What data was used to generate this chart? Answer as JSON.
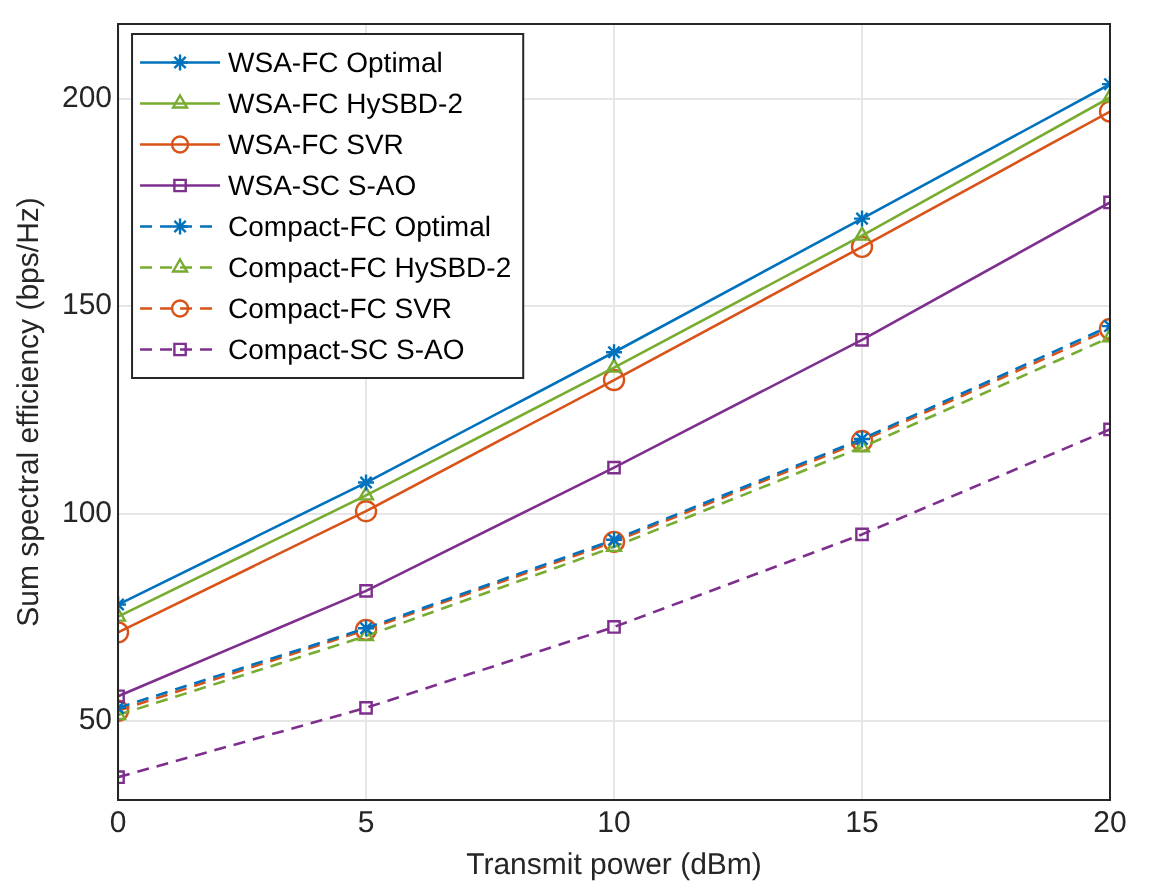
{
  "chart_data": {
    "type": "line",
    "xlabel": "Transmit power (dBm)",
    "ylabel": "Sum spectral efficiency (bps/Hz)",
    "x": [
      0,
      5,
      10,
      15,
      20
    ],
    "xlim": [
      0,
      20
    ],
    "xticks": [
      0,
      5,
      10,
      15,
      20
    ],
    "ylim": [
      31,
      218
    ],
    "yticks": [
      50,
      100,
      150,
      200
    ],
    "grid": true,
    "legend": "top left",
    "series": [
      {
        "name": "WSA-FC Optimal",
        "color": "#0072bd",
        "marker": "cross",
        "line_style": "solid",
        "values": [
          78.1,
          107.5,
          138.9,
          171.1,
          203.5
        ]
      },
      {
        "name": "WSA-FC HySBD-2",
        "color": "#77ac30",
        "marker": "triangle",
        "line_style": "solid",
        "values": [
          75.2,
          104.4,
          135.2,
          167,
          200.3
        ]
      },
      {
        "name": "WSA-FC SVR",
        "color": "#d95319",
        "marker": "circle",
        "line_style": "solid",
        "values": [
          71.4,
          100.6,
          132.2,
          164.3,
          196.9
        ]
      },
      {
        "name": "WSA-SC S-AO",
        "color": "#7e2f8e",
        "marker": "square",
        "line_style": "solid",
        "values": [
          56,
          81.4,
          111.1,
          141.9,
          175
        ]
      },
      {
        "name": "Compact-FC Optimal",
        "color": "#0072bd",
        "marker": "cross",
        "line_style": "dashed",
        "values": [
          53.2,
          72.4,
          93.7,
          118,
          145.2
        ]
      },
      {
        "name": "Compact-FC HySBD-2",
        "color": "#77ac30",
        "marker": "triangle",
        "line_style": "dashed",
        "values": [
          51.5,
          70.5,
          92,
          116,
          142.5
        ]
      },
      {
        "name": "Compact-FC SVR",
        "color": "#d95319",
        "marker": "circle",
        "line_style": "dashed",
        "values": [
          52.5,
          72,
          93.2,
          117.5,
          144.5
        ]
      },
      {
        "name": "Compact-SC S-AO",
        "color": "#7e2f8e",
        "marker": "square",
        "line_style": "dashed",
        "values": [
          36.5,
          53.2,
          72.7,
          95,
          120.3
        ]
      }
    ]
  }
}
